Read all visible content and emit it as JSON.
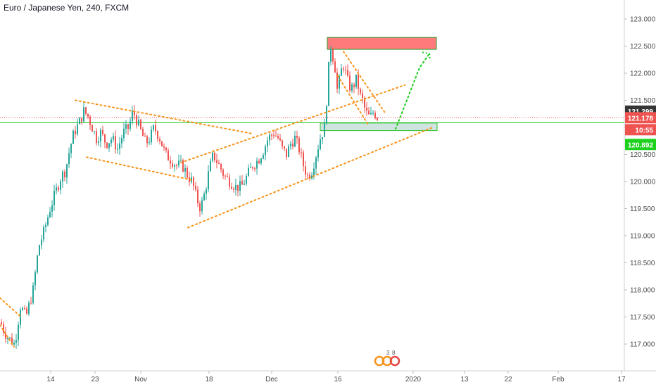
{
  "header": {
    "title": "Euro / Japanese Yen, 240, FXCM"
  },
  "colors": {
    "up": "#26a69a",
    "down": "#ef5350",
    "trendline": "#f7931a",
    "resistance_fill": "#ff7b7b",
    "support_fill": "#cfe4de",
    "support_border": "#29c229",
    "current_price_tag": "#ef5350",
    "last_price_tag": "#353535",
    "green_tag": "#1fd11f",
    "forecast_arrow": "#1ecb1e"
  },
  "price_tags": {
    "last": "121.299",
    "current": "121.178",
    "timer": "10:55",
    "line": "120.892"
  },
  "chart_data": {
    "type": "candlestick",
    "symbol": "Euro / Japanese Yen",
    "interval": "240",
    "source": "FXCM",
    "ylim": [
      116.7,
      123.2
    ],
    "y_ticks": [
      "117.000",
      "117.500",
      "118.000",
      "118.500",
      "119.000",
      "119.500",
      "120.000",
      "120.500",
      "121.000",
      "121.500",
      "122.000",
      "122.500",
      "123.000"
    ],
    "x_ticks": [
      "14",
      "23",
      "Nov",
      "18",
      "Dec",
      "16",
      "2020",
      "13",
      "22",
      "Feb",
      "17"
    ],
    "anchor_path": [
      [
        0,
        117.4
      ],
      [
        6,
        117.2
      ],
      [
        12,
        117.1
      ],
      [
        20,
        117.0
      ],
      [
        28,
        117.7
      ],
      [
        36,
        117.5
      ],
      [
        46,
        118.0
      ],
      [
        54,
        118.8
      ],
      [
        62,
        119.1
      ],
      [
        70,
        119.5
      ],
      [
        78,
        119.8
      ],
      [
        86,
        120.1
      ],
      [
        92,
        120.2
      ],
      [
        98,
        120.6
      ],
      [
        104,
        120.9
      ],
      [
        112,
        121.1
      ],
      [
        118,
        121.3
      ],
      [
        124,
        121.2
      ],
      [
        130,
        121.0
      ],
      [
        136,
        120.8
      ],
      [
        142,
        120.9
      ],
      [
        150,
        120.7
      ],
      [
        158,
        120.8
      ],
      [
        166,
        120.6
      ],
      [
        174,
        120.9
      ],
      [
        182,
        121.0
      ],
      [
        188,
        121.3
      ],
      [
        194,
        121.1
      ],
      [
        200,
        120.9
      ],
      [
        206,
        120.7
      ],
      [
        212,
        120.8
      ],
      [
        218,
        121.0
      ],
      [
        226,
        120.8
      ],
      [
        234,
        120.5
      ],
      [
        242,
        120.4
      ],
      [
        250,
        120.3
      ],
      [
        258,
        120.3
      ],
      [
        266,
        120.1
      ],
      [
        272,
        120.0
      ],
      [
        278,
        119.7
      ],
      [
        284,
        119.5
      ],
      [
        290,
        119.8
      ],
      [
        296,
        120.2
      ],
      [
        302,
        120.5
      ],
      [
        310,
        120.3
      ],
      [
        318,
        120.1
      ],
      [
        326,
        120.0
      ],
      [
        334,
        119.9
      ],
      [
        342,
        119.9
      ],
      [
        350,
        120.1
      ],
      [
        358,
        120.3
      ],
      [
        366,
        120.4
      ],
      [
        374,
        120.6
      ],
      [
        380,
        120.8
      ],
      [
        388,
        120.9
      ],
      [
        394,
        120.8
      ],
      [
        400,
        120.6
      ],
      [
        406,
        120.5
      ],
      [
        412,
        120.7
      ],
      [
        418,
        120.8
      ],
      [
        424,
        120.6
      ],
      [
        430,
        120.3
      ],
      [
        436,
        120.1
      ],
      [
        442,
        120.2
      ],
      [
        448,
        120.5
      ],
      [
        454,
        120.8
      ],
      [
        460,
        121.0
      ],
      [
        463,
        121.5
      ],
      [
        466,
        122.1
      ],
      [
        469,
        122.5
      ],
      [
        472,
        122.3
      ],
      [
        475,
        122.1
      ],
      [
        478,
        121.7
      ],
      [
        482,
        121.9
      ],
      [
        486,
        122.2
      ],
      [
        490,
        122.0
      ],
      [
        494,
        121.8
      ],
      [
        498,
        121.7
      ],
      [
        502,
        121.8
      ],
      [
        506,
        121.9
      ],
      [
        510,
        121.6
      ],
      [
        514,
        121.5
      ],
      [
        518,
        121.3
      ],
      [
        522,
        121.2
      ],
      [
        526,
        121.2
      ],
      [
        530,
        121.3
      ],
      [
        534,
        121.2
      ],
      [
        536,
        121.18
      ]
    ],
    "zones": [
      {
        "name": "resistance",
        "x": [
          "Dec 13",
          "Dec 31"
        ],
        "y": [
          122.45,
          122.65
        ]
      },
      {
        "name": "support",
        "x": [
          "Dec 13",
          "Dec 31"
        ],
        "y": [
          120.95,
          121.07
        ]
      }
    ],
    "levels": [
      121.178,
      120.892
    ],
    "trendlines": [
      {
        "p1": [
          107,
          121.5
        ],
        "p2": [
          360,
          120.88
        ]
      },
      {
        "p1": [
          123,
          120.45
        ],
        "p2": [
          272,
          120.03
        ]
      },
      {
        "p1": [
          257,
          120.35
        ],
        "p2": [
          575,
          121.78
        ]
      },
      {
        "p1": [
          267,
          119.15
        ],
        "p2": [
          615,
          121.0
        ]
      },
      {
        "p1": [
          0,
          117.85
        ],
        "p2": [
          30,
          117.5
        ]
      },
      {
        "p1": [
          0,
          117.35
        ],
        "p2": [
          20,
          116.95
        ]
      },
      {
        "p1": [
          488,
          122.4
        ],
        "p2": [
          548,
          121.25
        ]
      },
      {
        "p1": [
          480,
          121.95
        ],
        "p2": [
          523,
          121.05
        ]
      }
    ],
    "forecast_path": [
      [
        562,
        120.97
      ],
      [
        578,
        121.5
      ],
      [
        596,
        122.1
      ],
      [
        610,
        122.36
      ]
    ]
  }
}
